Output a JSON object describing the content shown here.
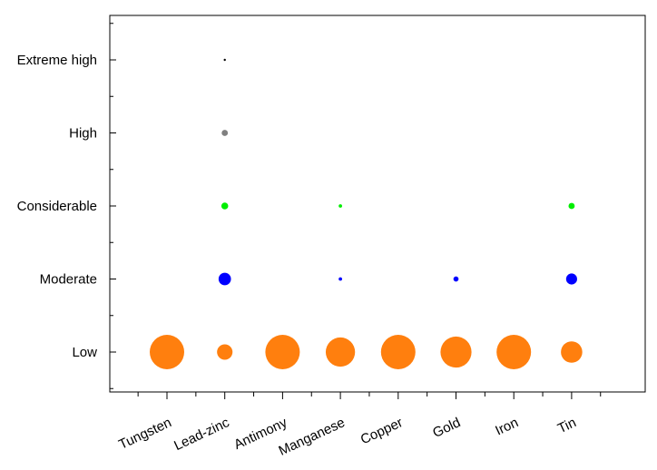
{
  "chart_data": {
    "type": "scatter",
    "title": "",
    "xlabel": "",
    "ylabel": "",
    "categories": [
      "Tungsten",
      "Lead-zinc",
      "Antimony",
      "Manganese",
      "Copper",
      "Gold",
      "Iron",
      "Tin"
    ],
    "levels": [
      "Low",
      "Moderate",
      "Considerable",
      "High",
      "Extreme high"
    ],
    "level_colors": {
      "Low": "#ff7f0e",
      "Moderate": "#0000ff",
      "Considerable": "#00ee00",
      "High": "#808080",
      "Extreme high": "#000000"
    },
    "points": [
      {
        "category": "Tungsten",
        "level": "Low",
        "size": 1.0
      },
      {
        "category": "Lead-zinc",
        "level": "Low",
        "size": 0.45
      },
      {
        "category": "Lead-zinc",
        "level": "Moderate",
        "size": 0.36
      },
      {
        "category": "Lead-zinc",
        "level": "Considerable",
        "size": 0.2
      },
      {
        "category": "Lead-zinc",
        "level": "High",
        "size": 0.18
      },
      {
        "category": "Lead-zinc",
        "level": "Extreme high",
        "size": 0.06
      },
      {
        "category": "Antimony",
        "level": "Low",
        "size": 1.0
      },
      {
        "category": "Manganese",
        "level": "Low",
        "size": 0.85
      },
      {
        "category": "Manganese",
        "level": "Moderate",
        "size": 0.1
      },
      {
        "category": "Manganese",
        "level": "Considerable",
        "size": 0.1
      },
      {
        "category": "Copper",
        "level": "Low",
        "size": 1.0
      },
      {
        "category": "Gold",
        "level": "Low",
        "size": 0.9
      },
      {
        "category": "Gold",
        "level": "Moderate",
        "size": 0.15
      },
      {
        "category": "Iron",
        "level": "Low",
        "size": 1.0
      },
      {
        "category": "Tin",
        "level": "Low",
        "size": 0.62
      },
      {
        "category": "Tin",
        "level": "Moderate",
        "size": 0.32
      },
      {
        "category": "Tin",
        "level": "Considerable",
        "size": 0.18
      }
    ],
    "grid": false,
    "legend": "none"
  }
}
